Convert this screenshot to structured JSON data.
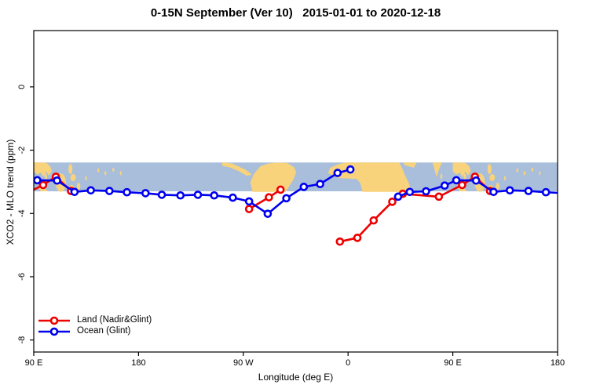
{
  "chart_data": {
    "type": "line",
    "title": "0-15N September (Ver 10)   2015-01-01 to 2020-12-18",
    "xlabel": "Longitude (deg E)",
    "ylabel": "XCO2 - MLO trend (ppm)",
    "grid": false,
    "x_axis": {
      "note": "longitude wraps eastward: 90E -> 180 -> 90W -> 0 -> 90E -> 180; plot coordinate is deg E from 90 to 540",
      "range": [
        90,
        540
      ],
      "tick_values": [
        90,
        180,
        270,
        360,
        450,
        540
      ],
      "tick_labels": [
        "90 E",
        "180",
        "90 W",
        "0",
        "90 E",
        "180"
      ]
    },
    "y_axis": {
      "range": [
        -8.38,
        1.78
      ],
      "tick_values": [
        0,
        -2,
        -4,
        -6,
        -8
      ],
      "tick_labels": [
        "0",
        "-2",
        "-4",
        "-6",
        "-8"
      ]
    },
    "map_band": {
      "description": "background world-map strip of the 0-15N latitude band",
      "top_value": -2.39,
      "bottom_value": -3.3,
      "ocean_color": "#a9bedb",
      "land_color": "#f8d37b",
      "shapes": [
        {
          "name": "indochina",
          "type": "poly",
          "repeat": true,
          "pts": [
            [
              90,
              0
            ],
            [
              96,
              0
            ],
            [
              101,
              0.02
            ],
            [
              104,
              0.12
            ],
            [
              105.5,
              0.3
            ],
            [
              103,
              0.45
            ],
            [
              100.5,
              0.32
            ],
            [
              98,
              0.5
            ],
            [
              96,
              0.35
            ],
            [
              93,
              0.42
            ],
            [
              90,
              0.3
            ]
          ]
        },
        {
          "name": "malay-peninsula",
          "type": "poly",
          "repeat": true,
          "pts": [
            [
              99,
              0.3
            ],
            [
              101.5,
              0.45
            ],
            [
              101,
              0.8
            ],
            [
              99.5,
              0.6
            ]
          ]
        },
        {
          "name": "sumatra",
          "type": "poly",
          "repeat": true,
          "pts": [
            [
              94.5,
              0.72
            ],
            [
              98,
              0.85
            ],
            [
              102.5,
              1.0
            ],
            [
              96,
              1.0
            ],
            [
              93.8,
              0.85
            ]
          ]
        },
        {
          "name": "borneo",
          "type": "ellipse",
          "repeat": true,
          "lon": [
            108.8,
            117.6
          ],
          "f": [
            0.38,
            1.02
          ]
        },
        {
          "name": "philippines-luzon",
          "type": "ellipse",
          "repeat": true,
          "lon": [
            119.8,
            123.2
          ],
          "f": [
            0.05,
            0.4
          ]
        },
        {
          "name": "philippines-mindanao",
          "type": "ellipse",
          "repeat": true,
          "lon": [
            121.5,
            126.2
          ],
          "f": [
            0.4,
            0.65
          ]
        },
        {
          "name": "sulawesi",
          "type": "ellipse",
          "repeat": true,
          "lon": [
            119.8,
            124.8
          ],
          "f": [
            0.78,
            1.04
          ]
        },
        {
          "name": "maluku",
          "type": "ellipse",
          "repeat": true,
          "lon": [
            127,
            130
          ],
          "f": [
            0.7,
            0.95
          ]
        },
        {
          "name": "palau-dot",
          "type": "ellipse",
          "repeat": true,
          "lon": [
            134,
            135.6
          ],
          "f": [
            0.48,
            0.62
          ]
        },
        {
          "name": "micronesia-dot-1",
          "type": "ellipse",
          "repeat": true,
          "lon": [
            144.6,
            146.2
          ],
          "f": [
            0.2,
            0.34
          ]
        },
        {
          "name": "micronesia-dot-2",
          "type": "ellipse",
          "repeat": true,
          "lon": [
            150.8,
            152.4
          ],
          "f": [
            0.3,
            0.44
          ]
        },
        {
          "name": "micronesia-dot-3",
          "type": "ellipse",
          "repeat": true,
          "lon": [
            157.5,
            159.1
          ],
          "f": [
            0.18,
            0.32
          ]
        },
        {
          "name": "micronesia-dot-4",
          "type": "ellipse",
          "repeat": true,
          "lon": [
            164,
            165.4
          ],
          "f": [
            0.3,
            0.44
          ]
        },
        {
          "name": "central-america",
          "type": "poly",
          "pts": [
            [
              252,
              0
            ],
            [
              260,
              0.03
            ],
            [
              266,
              0.14
            ],
            [
              272,
              0.25
            ],
            [
              277.5,
              0.42
            ],
            [
              273,
              0.46
            ],
            [
              266,
              0.3
            ],
            [
              258,
              0.16
            ],
            [
              252,
              0.12
            ]
          ]
        },
        {
          "name": "south-america",
          "type": "poly",
          "pts": [
            [
              281,
              0.3
            ],
            [
              285,
              0.12
            ],
            [
              291,
              0.04
            ],
            [
              299,
              0
            ],
            [
              308,
              0.02
            ],
            [
              313.5,
              0.16
            ],
            [
              315.5,
              0.34
            ],
            [
              313,
              0.6
            ],
            [
              309,
              0.85
            ],
            [
              306.5,
              1.02
            ],
            [
              278,
              1.02
            ],
            [
              276,
              0.7
            ],
            [
              278.5,
              0.45
            ]
          ]
        },
        {
          "name": "africa",
          "type": "poly",
          "pts": [
            [
              351.5,
              0.06
            ],
            [
              358,
              0
            ],
            [
              404,
              0
            ],
            [
              406.5,
              0.2
            ],
            [
              409,
              0.45
            ],
            [
              412,
              0.7
            ],
            [
              414.5,
              1.02
            ],
            [
              372.5,
              1.02
            ],
            [
              370.5,
              0.72
            ],
            [
              367.5,
              0.57
            ],
            [
              352.5,
              0.54
            ],
            [
              347.5,
              0.48
            ],
            [
              342.8,
              0.36
            ],
            [
              344.8,
              0.18
            ]
          ]
        },
        {
          "name": "arabia",
          "type": "poly",
          "pts": [
            [
              407,
              0
            ],
            [
              419,
              0
            ],
            [
              416.5,
              0.18
            ],
            [
              409,
              0.1
            ]
          ]
        },
        {
          "name": "india-tip",
          "type": "poly",
          "pts": [
            [
              432.5,
              0
            ],
            [
              440.5,
              0
            ],
            [
              437.8,
              0.28
            ],
            [
              436,
              0.5
            ],
            [
              434,
              0.2
            ]
          ]
        },
        {
          "name": "sri-lanka-dot",
          "type": "ellipse",
          "lon": [
            439.3,
            441
          ],
          "f": [
            0.38,
            0.58
          ]
        }
      ]
    },
    "series": [
      {
        "name": "Land (Nadir&Glint)",
        "color": "#ee0000",
        "marker": "open-circle",
        "segments": [
          [
            [
              90,
              -3.25,
              0
            ],
            [
              98,
              -3.1
            ],
            [
              109,
              -2.84
            ],
            [
              122,
              -3.29
            ]
          ],
          [
            [
              275,
              -3.86
            ],
            [
              292,
              -3.49
            ],
            [
              302,
              -3.25
            ]
          ],
          [
            [
              353,
              -4.89
            ],
            [
              368,
              -4.77
            ],
            [
              382,
              -4.22
            ],
            [
              398,
              -3.63
            ],
            [
              407,
              -3.38
            ],
            [
              438,
              -3.47
            ],
            [
              458,
              -3.1
            ],
            [
              469,
              -2.84
            ],
            [
              482,
              -3.29
            ]
          ]
        ]
      },
      {
        "name": "Ocean (Glint)",
        "color": "#0000ee",
        "marker": "open-circle",
        "segments": [
          [
            [
              90,
              -2.97,
              0
            ],
            [
              93,
              -2.95
            ],
            [
              110,
              -2.96
            ],
            [
              125,
              -3.32
            ],
            [
              139,
              -3.27
            ],
            [
              155,
              -3.29
            ],
            [
              170,
              -3.33
            ],
            [
              186,
              -3.36
            ],
            [
              200,
              -3.41
            ],
            [
              216,
              -3.43
            ],
            [
              231,
              -3.41
            ],
            [
              245,
              -3.43
            ],
            [
              261,
              -3.5
            ],
            [
              275,
              -3.62
            ],
            [
              291,
              -4.01
            ],
            [
              307,
              -3.52
            ],
            [
              322,
              -3.16
            ],
            [
              336,
              -3.07
            ],
            [
              351,
              -2.72
            ],
            [
              362,
              -2.61
            ]
          ],
          [
            [
              403,
              -3.47
            ],
            [
              413,
              -3.32
            ],
            [
              427,
              -3.3
            ],
            [
              443,
              -3.12
            ],
            [
              453,
              -2.95
            ],
            [
              470,
              -2.96
            ],
            [
              485,
              -3.32
            ],
            [
              499,
              -3.27
            ],
            [
              515,
              -3.29
            ],
            [
              530,
              -3.33
            ],
            [
              540,
              -3.35,
              0
            ]
          ]
        ]
      }
    ],
    "legend": {
      "position": "bottom-left-inside"
    }
  }
}
